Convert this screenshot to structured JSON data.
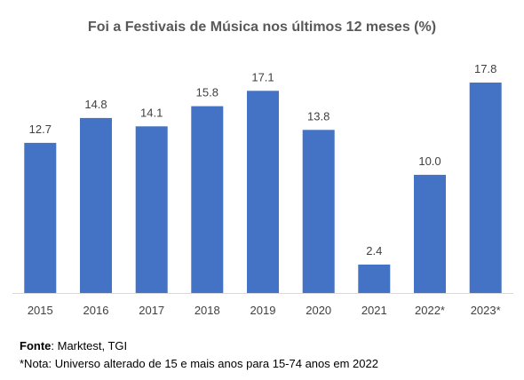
{
  "chart_data": {
    "type": "bar",
    "title": "Foi a Festivais de Música nos últimos 12 meses (%)",
    "xlabel": "",
    "ylabel": "",
    "categories": [
      "2015",
      "2016",
      "2017",
      "2018",
      "2019",
      "2020",
      "2021",
      "2022*",
      "2023*"
    ],
    "values": [
      12.7,
      14.8,
      14.1,
      15.8,
      17.1,
      13.8,
      2.4,
      10.0,
      17.8
    ],
    "value_labels": [
      "12.7",
      "14.8",
      "14.1",
      "15.8",
      "17.1",
      "13.8",
      "2.4",
      "10.0",
      "17.8"
    ],
    "ylim": [
      0,
      17.8
    ],
    "grid": false,
    "legend": "none",
    "bar_color": "#4472C4",
    "axis_color": "#D9D9D9"
  },
  "notes": {
    "source_label": "Fonte",
    "source_text": ": Marktest, TGI",
    "footnote": "*Nota: Universo alterado de 15 e mais anos para 15-74 anos em 2022"
  }
}
